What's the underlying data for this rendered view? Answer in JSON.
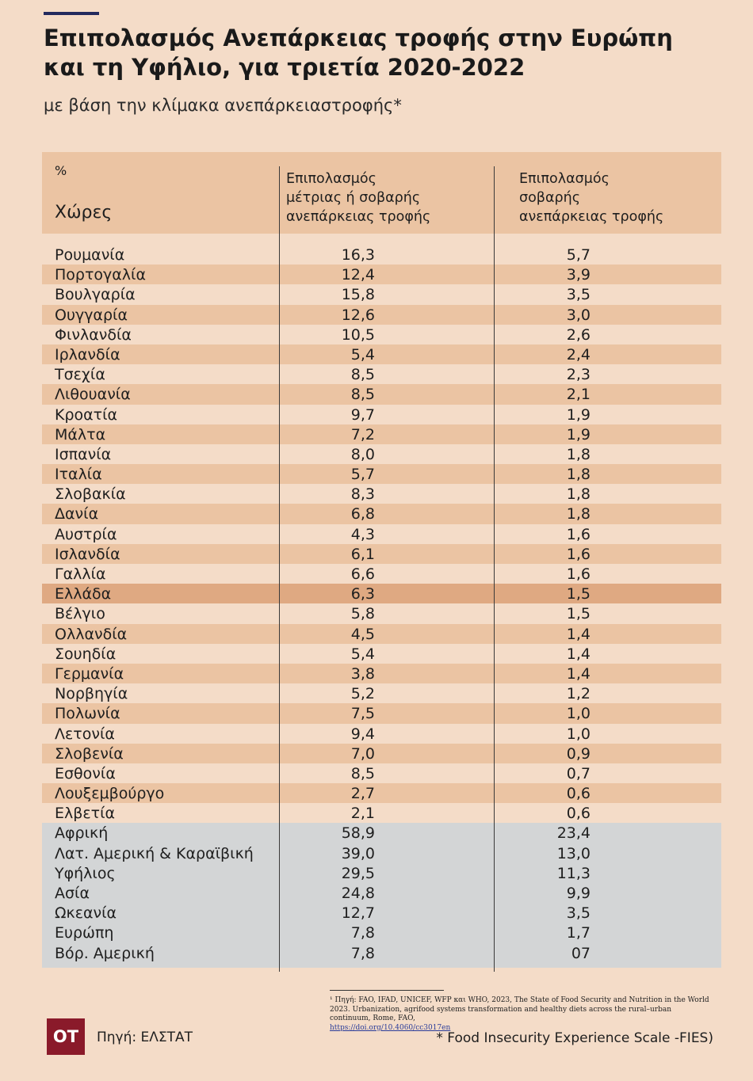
{
  "header": {
    "title_line1": "Επιπολασμός Ανεπάρκειας τροφής στην Ευρώπη",
    "title_line2": "και τη Υφήλιο, για τριετία 2020-2022",
    "subtitle": "με βάση την κλίμακα ανεπάρκειαστροφής*"
  },
  "table_header": {
    "unit": "%",
    "countries": "Χώρες",
    "col1": [
      "Επιπολασμός",
      "μέτριας ή σοβαρής",
      "ανεπάρκειας τροφής"
    ],
    "col2": [
      "Επιπολασμός",
      "σοβαρής",
      "ανεπάρκειας τροφής"
    ]
  },
  "colors": {
    "background": "#f4dcc8",
    "band": "#ebc4a3",
    "highlight": "#dfa982",
    "regions": "#d3d5d6",
    "accent": "#232a5e",
    "logo": "#8a1a2a"
  },
  "chart_data": {
    "type": "table",
    "columns": [
      "Χώρες",
      "Επιπολασμός μέτριας ή σοβαρής ανεπάρκειας τροφής",
      "Επιπολασμός σοβαρής ανεπάρκειας τροφής"
    ],
    "countries": [
      {
        "name": "Ρουμανία",
        "moderate_severe": "16,3",
        "severe": "5,7"
      },
      {
        "name": "Πορτογαλία",
        "moderate_severe": "12,4",
        "severe": "3,9"
      },
      {
        "name": "Βουλγαρία",
        "moderate_severe": "15,8",
        "severe": "3,5"
      },
      {
        "name": "Ουγγαρία",
        "moderate_severe": "12,6",
        "severe": "3,0"
      },
      {
        "name": "Φινλανδία",
        "moderate_severe": "10,5",
        "severe": "2,6"
      },
      {
        "name": "Ιρλανδία",
        "moderate_severe": "5,4",
        "severe": "2,4"
      },
      {
        "name": "Τσεχία",
        "moderate_severe": "8,5",
        "severe": "2,3"
      },
      {
        "name": "Λιθουανία",
        "moderate_severe": "8,5",
        "severe": "2,1"
      },
      {
        "name": "Κροατία",
        "moderate_severe": "9,7",
        "severe": "1,9"
      },
      {
        "name": "Μάλτα",
        "moderate_severe": "7,2",
        "severe": "1,9"
      },
      {
        "name": "Ισπανία",
        "moderate_severe": "8,0",
        "severe": "1,8"
      },
      {
        "name": "Ιταλία",
        "moderate_severe": "5,7",
        "severe": "1,8"
      },
      {
        "name": "Σλοβακία",
        "moderate_severe": "8,3",
        "severe": "1,8"
      },
      {
        "name": "Δανία",
        "moderate_severe": "6,8",
        "severe": "1,8"
      },
      {
        "name": "Αυστρία",
        "moderate_severe": "4,3",
        "severe": "1,6"
      },
      {
        "name": "Ισλανδία",
        "moderate_severe": "6,1",
        "severe": "1,6"
      },
      {
        "name": "Γαλλία",
        "moderate_severe": "6,6",
        "severe": "1,6"
      },
      {
        "name": "Ελλάδα",
        "moderate_severe": "6,3",
        "severe": "1,5"
      },
      {
        "name": "Βέλγιο",
        "moderate_severe": "5,8",
        "severe": "1,5"
      },
      {
        "name": "Ολλανδία",
        "moderate_severe": "4,5",
        "severe": "1,4"
      },
      {
        "name": "Σουηδία",
        "moderate_severe": "5,4",
        "severe": "1,4"
      },
      {
        "name": "Γερμανία",
        "moderate_severe": "3,8",
        "severe": "1,4"
      },
      {
        "name": "Νορβηγία",
        "moderate_severe": "5,2",
        "severe": "1,2"
      },
      {
        "name": "Πολωνία",
        "moderate_severe": "7,5",
        "severe": "1,0"
      },
      {
        "name": "Λετονία",
        "moderate_severe": "9,4",
        "severe": "1,0"
      },
      {
        "name": "Σλοβενία",
        "moderate_severe": "7,0",
        "severe": "0,9"
      },
      {
        "name": "Εσθονία",
        "moderate_severe": "8,5",
        "severe": "0,7"
      },
      {
        "name": "Λουξεμβούργο",
        "moderate_severe": "2,7",
        "severe": "0,6"
      },
      {
        "name": "Ελβετία",
        "moderate_severe": "2,1",
        "severe": "0,6"
      }
    ],
    "highlighted": "Ελλάδα",
    "regions": [
      {
        "name": "Αφρική",
        "moderate_severe": "58,9",
        "severe": "23,4"
      },
      {
        "name": "Λατ. Αμερική & Καραϊβική",
        "moderate_severe": "39,0",
        "severe": "13,0"
      },
      {
        "name": "Υφήλιος",
        "moderate_severe": "29,5",
        "severe": "11,3"
      },
      {
        "name": "Ασία",
        "moderate_severe": "24,8",
        "severe": "9,9"
      },
      {
        "name": "Ωκεανία",
        "moderate_severe": "12,7",
        "severe": "3,5"
      },
      {
        "name": "Ευρώπη",
        "moderate_severe": "7,8",
        "severe": "1,7"
      },
      {
        "name": "Βόρ. Αμερική",
        "moderate_severe": "7,8",
        "severe": "07"
      }
    ]
  },
  "footer": {
    "footnote_text": "¹ Πηγή: FAO, IFAD, UNICEF, WFP και WHO, 2023, The State of Food Security and Nutrition in the World 2023. Urbanization, agrifood systems transformation and healthy diets across the rural–urban continuum, Rome, FAO,",
    "footnote_doi": "https://doi.org/10.4060/cc3017en",
    "logo": "OT",
    "source": "Πηγή: ΕΛΣΤΑΤ",
    "scale_note": "*  Food Insecurity Experience Scale -FIES)"
  }
}
